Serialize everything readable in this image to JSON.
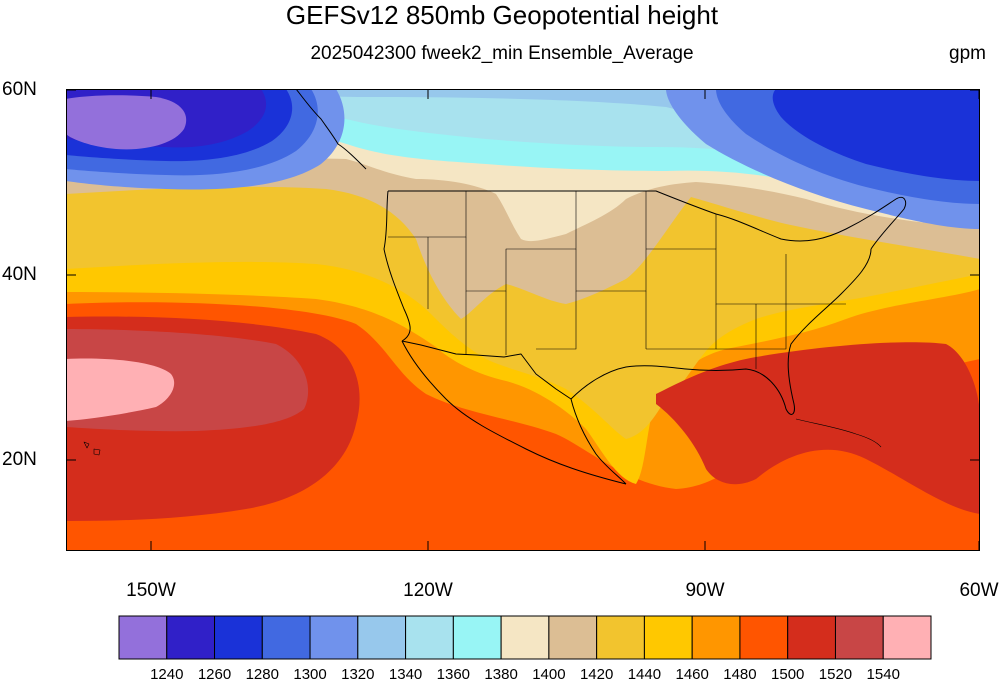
{
  "title": "GEFSv12 850mb Geopotential height",
  "subtitle": "2025042300 fweek2_min Ensemble_Average",
  "units": "gpm",
  "lat_labels": [
    "60N",
    "40N",
    "20N"
  ],
  "lon_labels": [
    "150W",
    "120W",
    "90W",
    "60W"
  ],
  "colorbar": {
    "colors": [
      "#9370db",
      "#3020c8",
      "#1a32d8",
      "#4169e1",
      "#7092ec",
      "#97c8ec",
      "#a8e2ee",
      "#98f5f5",
      "#f5e6c4",
      "#dcbe94",
      "#f2c42e",
      "#ffc800",
      "#ff9600",
      "#ff5500",
      "#d42d1c",
      "#c84646",
      "#ffb0b4"
    ],
    "labels": [
      "1240",
      "1260",
      "1280",
      "1300",
      "1320",
      "1340",
      "1360",
      "1380",
      "1400",
      "1420",
      "1440",
      "1460",
      "1480",
      "1500",
      "1520",
      "1540"
    ]
  }
}
